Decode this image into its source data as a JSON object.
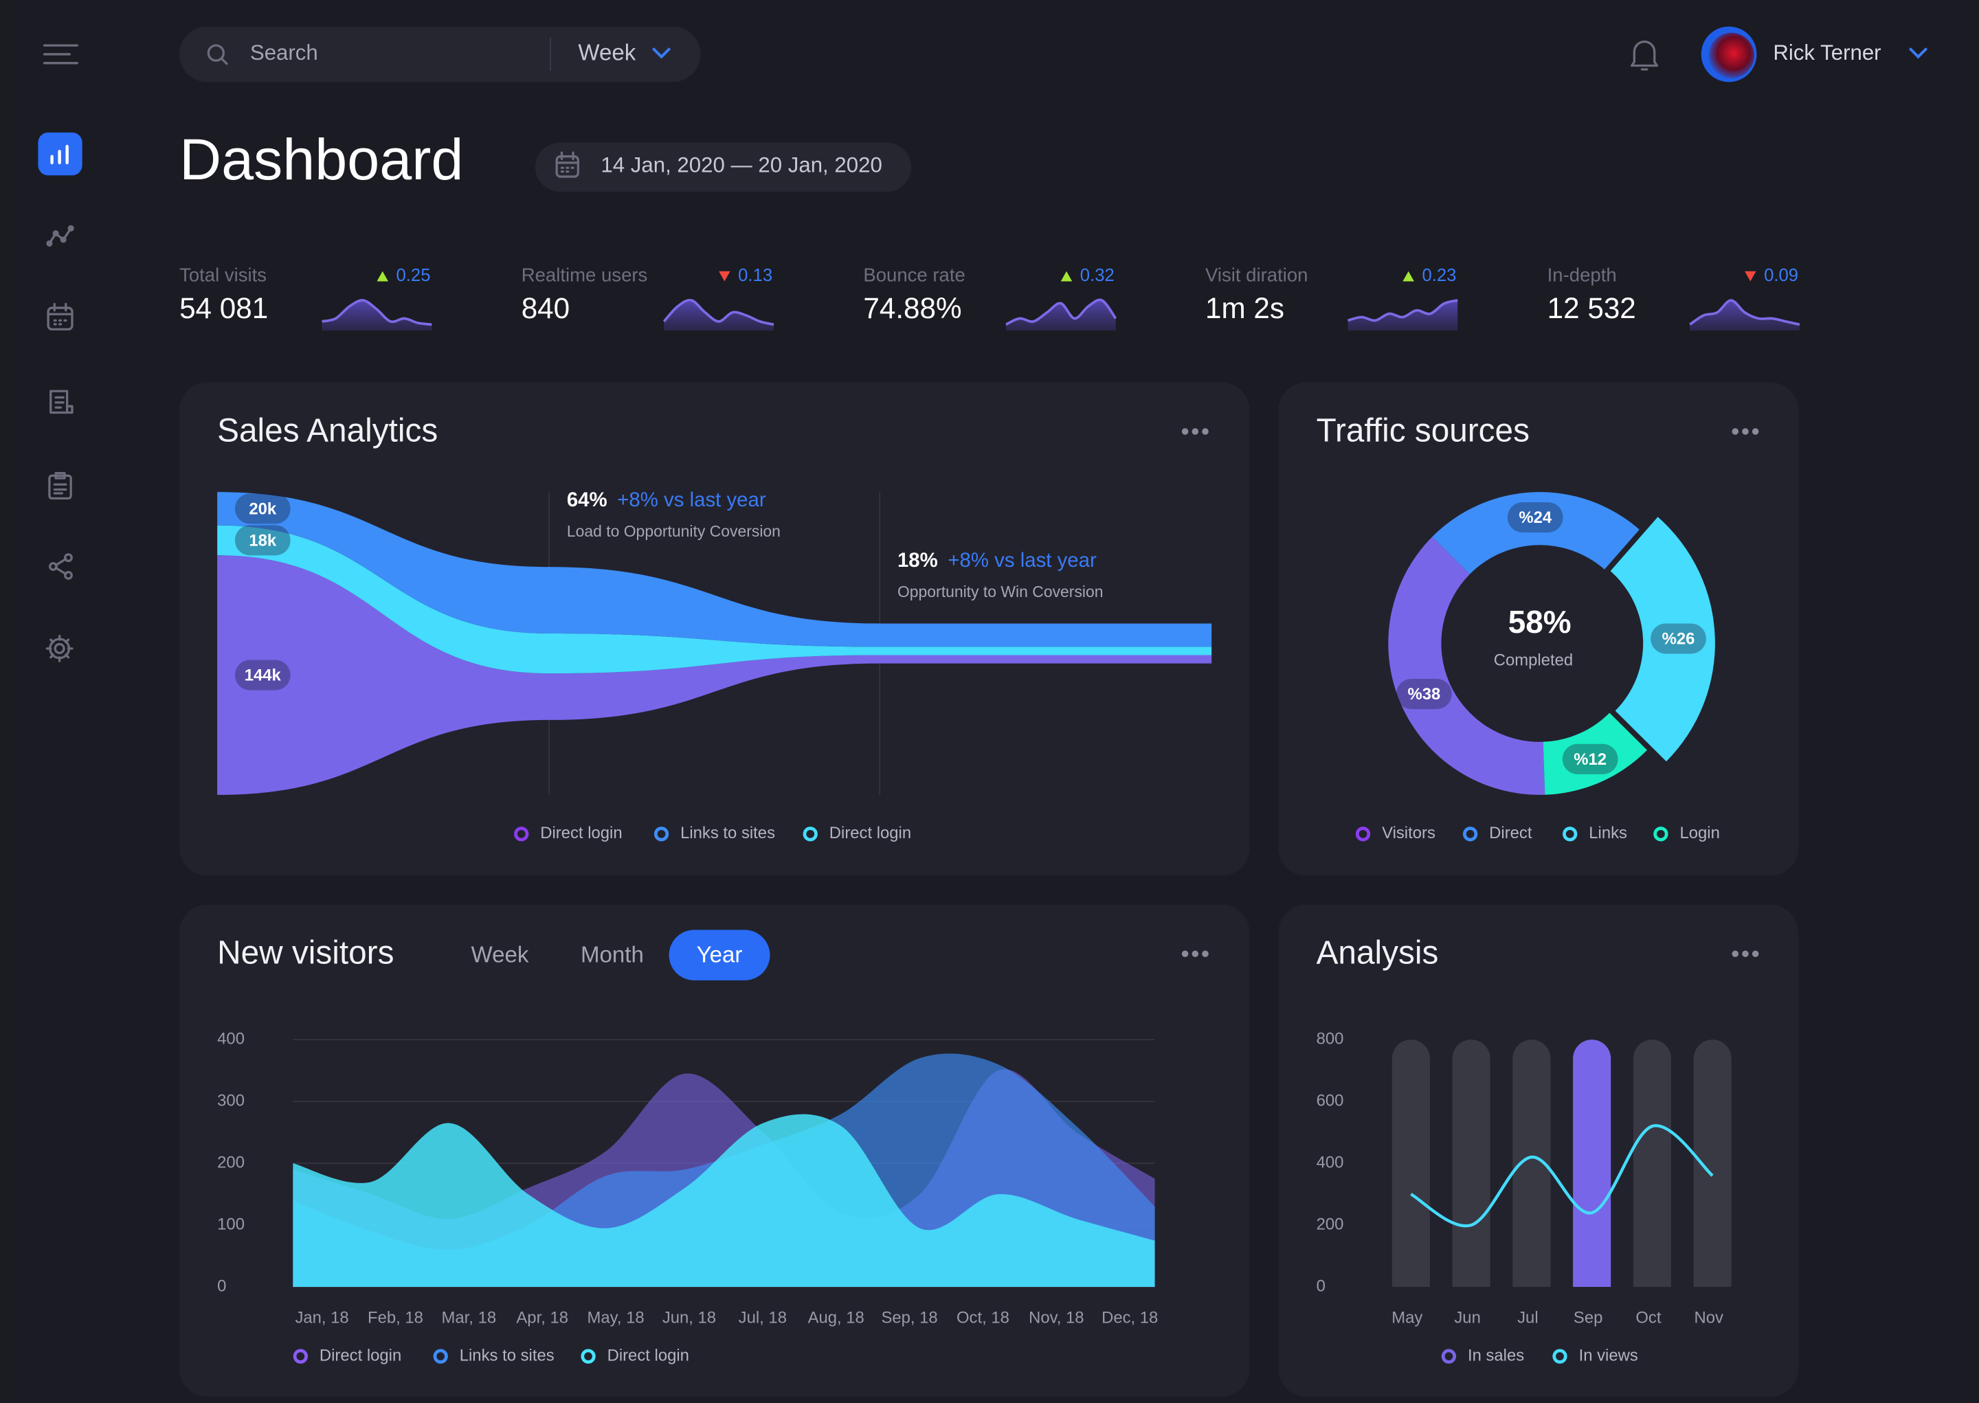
{
  "header": {
    "search": "Search",
    "period": "Week",
    "user": "Rick Terner"
  },
  "page": {
    "title": "Dashboard",
    "date_range": "14 Jan, 2020 — 20 Jan, 2020"
  },
  "kpis": [
    {
      "label": "Total visits",
      "value": "54 081",
      "change": 0.25,
      "trend": "up",
      "sparkline": [
        3,
        4,
        8,
        10,
        7,
        3,
        4,
        2.5,
        2
      ]
    },
    {
      "label": "Realtime users",
      "value": "840",
      "change": 0.13,
      "trend": "down",
      "sparkline": [
        3,
        8,
        10,
        6,
        3,
        6,
        5,
        3,
        2
      ]
    },
    {
      "label": "Bounce rate",
      "value": "74.88%",
      "change": 0.32,
      "trend": "up",
      "sparkline": [
        2,
        4,
        3,
        6,
        9,
        4,
        8,
        10,
        4
      ]
    },
    {
      "label": "Visit diration",
      "value": "1m 2s",
      "change": 0.23,
      "trend": "up",
      "sparkline": [
        3,
        4,
        3,
        5,
        4,
        6,
        5,
        8,
        9
      ]
    },
    {
      "label": "In-depth",
      "value": "12 532",
      "change": 0.09,
      "trend": "down",
      "sparkline": [
        2,
        5,
        6,
        10,
        6,
        4,
        4,
        3,
        2
      ]
    }
  ],
  "chart_data": [
    {
      "type": "funnel",
      "title": "Sales Analytics",
      "annotations": [
        {
          "value": "64%",
          "change": "+8% vs last year",
          "text": "Load to Opportunity Coversion"
        },
        {
          "value": "18%",
          "change": "+8% vs last year",
          "text": "Opportunity to Win Coversion"
        }
      ],
      "stack_order": [
        0,
        2,
        1
      ],
      "series": [
        {
          "name": "Direct login",
          "color": "#7866e8",
          "legend_color": "#8b3cf0",
          "values": [
            144,
            28,
            5
          ],
          "value_labels": [
            "144k",
            null,
            null
          ]
        },
        {
          "name": "Links to sites",
          "color": "#3d8ef8",
          "legend_color": "#3d8ef8",
          "values": [
            20,
            40,
            14
          ],
          "value_labels": [
            "20k",
            null,
            null
          ]
        },
        {
          "name": "Direct login",
          "color": "#45dcfd",
          "legend_color": "#45dcfd",
          "values": [
            18,
            24,
            5
          ],
          "value_labels": [
            "18k",
            null,
            null
          ]
        }
      ]
    },
    {
      "type": "donut",
      "title": "Traffic sources",
      "center_value": "58%",
      "center_label": "Completed",
      "categories": [
        "Visitors",
        "Direct",
        "Links",
        "Login"
      ],
      "values": [
        38,
        24,
        26,
        12
      ],
      "value_labels": [
        "%38",
        "%24",
        "%26",
        "%12"
      ],
      "colors": [
        "#7866e8",
        "#3d8ef8",
        "#45dcfd",
        "#19eec4"
      ],
      "exploded": 2
    },
    {
      "type": "area",
      "title": "New visitors",
      "tabs": [
        "Week",
        "Month",
        "Year"
      ],
      "active_tab": 2,
      "categories": [
        "Jan, 18",
        "Feb, 18",
        "Mar, 18",
        "Apr, 18",
        "May, 18",
        "Jun, 18",
        "Jul, 18",
        "Aug, 18",
        "Sep, 18",
        "Oct, 18",
        "Nov, 18",
        "Dec, 18"
      ],
      "ylim": [
        0,
        400
      ],
      "yticks": [
        0,
        100,
        200,
        300,
        400
      ],
      "grid": true,
      "series": [
        {
          "name": "Direct login",
          "color": "#7a62e0",
          "values": [
            190,
            150,
            110,
            160,
            220,
            345,
            250,
            120,
            150,
            350,
            250,
            175
          ]
        },
        {
          "name": "Links to sites",
          "color": "#3d8ef8",
          "values": [
            140,
            90,
            60,
            100,
            180,
            190,
            230,
            280,
            370,
            360,
            260,
            130
          ]
        },
        {
          "name": "Direct login",
          "color": "#46e5fd",
          "values": [
            200,
            170,
            265,
            150,
            95,
            160,
            265,
            260,
            95,
            150,
            110,
            75
          ]
        }
      ]
    },
    {
      "type": "bar_line",
      "title": "Analysis",
      "categories": [
        "May",
        "Jun",
        "Jul",
        "Sep",
        "Oct",
        "Nov"
      ],
      "ylim": [
        0,
        800
      ],
      "yticks": [
        0,
        200,
        400,
        600,
        800
      ],
      "highlight": 3,
      "muted_color": "#393944",
      "series": [
        {
          "name": "In sales",
          "kind": "bar",
          "color": "#7866e8",
          "values": [
            800,
            800,
            800,
            800,
            800,
            800
          ]
        },
        {
          "name": "In views",
          "kind": "line",
          "color": "#45dcfd",
          "values": [
            300,
            200,
            420,
            240,
            520,
            360
          ]
        }
      ]
    }
  ]
}
